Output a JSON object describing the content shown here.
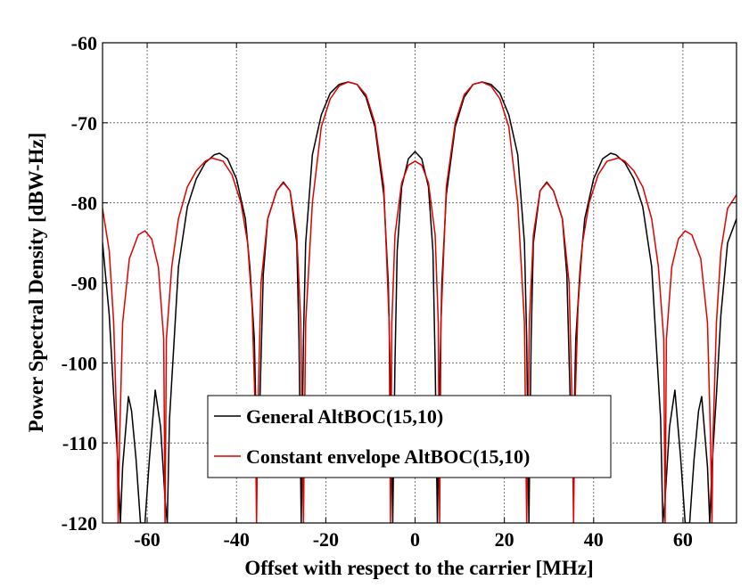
{
  "chart_data": {
    "type": "line",
    "title": "",
    "xlabel": "Offset with respect to the carrier [MHz]",
    "ylabel": "Power Spectral Density [dBW-Hz]",
    "xlim": [
      -70,
      72
    ],
    "ylim": [
      -120,
      -60
    ],
    "xticks": [
      -60,
      -40,
      -20,
      0,
      20,
      40,
      60
    ],
    "xtick_labels": [
      "-60",
      "-40",
      "-20",
      "0",
      "20",
      "40",
      "60"
    ],
    "yticks": [
      -120,
      -110,
      -100,
      -90,
      -80,
      -70,
      -60
    ],
    "ytick_labels": [
      "-120",
      "-110",
      "-100",
      "-90",
      "-80",
      "-70",
      "-60"
    ],
    "grid": true,
    "legend_position": "bottom-center",
    "series": [
      {
        "name": "General AltBOC(15,10)",
        "color": "#000000",
        "x": [
          -70,
          -68.5,
          -67.5,
          -66.5,
          -66,
          -65.5,
          -64.2,
          -63.5,
          -62.5,
          -61.5,
          -60.5,
          -59.5,
          -58.2,
          -57,
          -56,
          -55.5,
          -55,
          -53,
          -51,
          -49,
          -47,
          -45,
          -43.8,
          -42,
          -40,
          -38,
          -37,
          -36,
          -35.5,
          -35,
          -34,
          -33,
          -31,
          -29.5,
          -28,
          -26.5,
          -26,
          -25.5,
          -25,
          -24.5,
          -23,
          -21,
          -19,
          -17,
          -15,
          -13,
          -11,
          -9,
          -7,
          -6,
          -5.5,
          -5,
          -4.5,
          -4,
          -3,
          -1.5,
          0,
          1.5,
          3,
          4,
          4.5,
          5,
          5.5,
          6,
          7,
          9,
          11,
          13,
          15,
          17,
          19,
          21,
          23,
          24.5,
          25,
          25.5,
          26,
          26.5,
          28,
          29.5,
          31,
          33,
          34,
          35,
          35.5,
          36,
          37,
          38,
          40,
          42,
          43.8,
          45,
          47,
          49,
          51,
          53,
          55,
          55.5,
          56,
          57,
          58.2,
          59.5,
          60.5,
          61.5,
          62.5,
          63.5,
          64.2,
          65.5,
          66,
          66.5,
          67.5,
          68.5,
          70,
          72
        ],
        "y": [
          -85,
          -94,
          -104,
          -113,
          -120,
          -113,
          -104.2,
          -106,
          -112,
          -120,
          -120,
          -112,
          -103.4,
          -108,
          -117,
          -120,
          -107,
          -88,
          -80.5,
          -77,
          -75,
          -74,
          -73.8,
          -74.5,
          -77,
          -82,
          -88,
          -97,
          -110,
          -110,
          -89,
          -82,
          -78.5,
          -77.4,
          -78.5,
          -85,
          -97,
          -120,
          -97,
          -85,
          -74,
          -69,
          -66.3,
          -65.2,
          -64.9,
          -65.2,
          -66.8,
          -70.5,
          -79,
          -90,
          -103,
          -120,
          -100,
          -86,
          -78,
          -74.5,
          -73.6,
          -74.5,
          -78,
          -86,
          -100,
          -120,
          -103,
          -90,
          -79,
          -70.5,
          -66.8,
          -65.2,
          -64.9,
          -65.2,
          -66.3,
          -69,
          -74,
          -85,
          -97,
          -120,
          -97,
          -85,
          -78.5,
          -77.4,
          -78.5,
          -82,
          -89,
          -110,
          -110,
          -97,
          -88,
          -82,
          -77,
          -74.5,
          -73.8,
          -74,
          -75,
          -77,
          -80.5,
          -88,
          -107,
          -120,
          -117,
          -108,
          -103.4,
          -112,
          -120,
          -120,
          -112,
          -106,
          -104.2,
          -113,
          -120,
          -113,
          -104,
          -94,
          -85,
          -82
        ]
      },
      {
        "name": "Constant envelope AltBOC(15,10)",
        "color": "#e00000",
        "x": [
          -70,
          -68.5,
          -67.5,
          -66.7,
          -66.5,
          -66.2,
          -65.5,
          -64,
          -62,
          -60.5,
          -59,
          -57.5,
          -56.3,
          -56,
          -55.7,
          -54.5,
          -53,
          -51,
          -49,
          -47,
          -45.5,
          -43,
          -41,
          -39,
          -37.5,
          -36.5,
          -35.8,
          -35.5,
          -35.2,
          -34.5,
          -33,
          -31,
          -29.5,
          -28,
          -26.5,
          -25.6,
          -25.3,
          -25,
          -24.5,
          -23,
          -21,
          -19,
          -17,
          -15,
          -13,
          -11,
          -9,
          -7,
          -5.8,
          -5.5,
          -5.2,
          -4.5,
          -3,
          -1.5,
          0,
          1.5,
          3,
          4.5,
          5.2,
          5.5,
          5.8,
          7,
          9,
          11,
          13,
          15,
          17,
          19,
          21,
          23,
          24.5,
          25,
          25.3,
          25.6,
          26.5,
          28,
          29.5,
          31,
          33,
          34.5,
          35.2,
          35.5,
          35.8,
          36.5,
          37.5,
          39,
          41,
          43,
          45.5,
          47,
          49,
          51,
          53,
          54.5,
          55.7,
          56,
          56.3,
          57.5,
          59,
          60.5,
          62,
          64,
          65.5,
          66.2,
          66.5,
          66.7,
          67.5,
          68.5,
          70,
          72
        ],
        "y": [
          -80.7,
          -86,
          -95,
          -110,
          -120,
          -110,
          -95,
          -87,
          -84,
          -83.5,
          -84.5,
          -88,
          -97,
          -120,
          -97,
          -88,
          -82,
          -78,
          -76,
          -74.8,
          -74.4,
          -74.8,
          -76.5,
          -80,
          -85,
          -93,
          -106,
          -120,
          -106,
          -90,
          -82,
          -78.5,
          -77.5,
          -78.5,
          -84,
          -95,
          -108,
          -120,
          -95,
          -80,
          -70.5,
          -67,
          -65.4,
          -64.9,
          -65.2,
          -66.5,
          -70,
          -78,
          -95,
          -120,
          -95,
          -84,
          -77.5,
          -75.3,
          -74.8,
          -75.3,
          -77.5,
          -84,
          -95,
          -120,
          -95,
          -78,
          -70,
          -66.5,
          -65.2,
          -64.9,
          -65.4,
          -67,
          -70.5,
          -80,
          -95,
          -120,
          -108,
          -95,
          -84,
          -78.5,
          -77.5,
          -78.5,
          -82,
          -90,
          -106,
          -120,
          -106,
          -93,
          -85,
          -80,
          -76.5,
          -74.8,
          -74.4,
          -74.8,
          -76,
          -78,
          -82,
          -88,
          -97,
          -120,
          -97,
          -88,
          -84.5,
          -83.5,
          -84,
          -87,
          -95,
          -110,
          -120,
          -110,
          -95,
          -86,
          -80.7,
          -79
        ]
      }
    ]
  }
}
